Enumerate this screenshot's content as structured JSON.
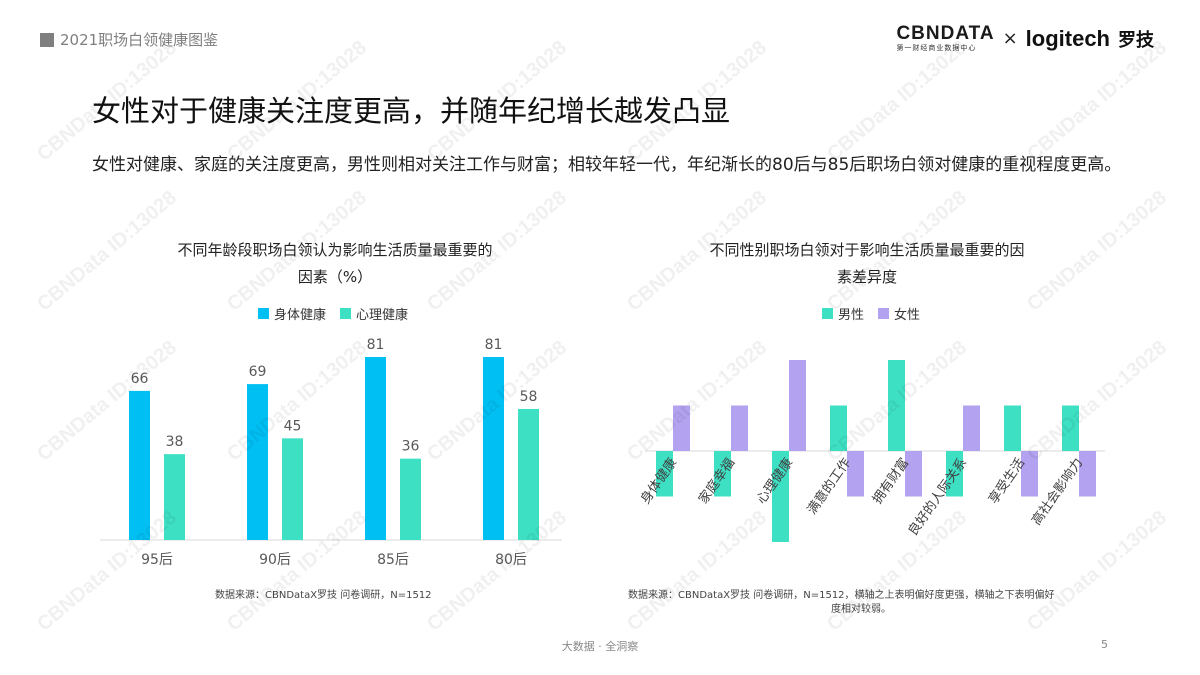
{
  "header": {
    "tag": "2021职场白领健康图鉴"
  },
  "logos": {
    "cbn_name": "CBNDATA",
    "cbn_sub": "第一财经商业数据中心",
    "times": "×",
    "logitech": "logitech",
    "logitech_cn": "罗技"
  },
  "title": "女性对于健康关注度更高，并随年纪增长越发凸显",
  "subtitle": "女性对健康、家庭的关注度更高，男性则相对关注工作与财富；相较年轻一代，年纪渐长的80后与85后职场白领对健康的重视程度更高。",
  "colors": {
    "cyan": "#00bff3",
    "mint": "#3ee0c4",
    "purple": "#b2a2f0"
  },
  "chart_data": [
    {
      "type": "bar",
      "title_line1": "不同年龄段职场白领认为影响生活质量最重要的",
      "title_line2": "因素（%）",
      "categories": [
        "95后",
        "90后",
        "85后",
        "80后"
      ],
      "series": [
        {
          "name": "身体健康",
          "values": [
            66,
            69,
            81,
            81
          ],
          "color": "#00bff3"
        },
        {
          "name": "心理健康",
          "values": [
            38,
            45,
            36,
            58
          ],
          "color": "#3ee0c4"
        }
      ],
      "ylim": [
        0,
        81
      ],
      "source": "数据来源：CBNDataX罗技 问卷调研，N=1512"
    },
    {
      "type": "bar",
      "title_line1": "不同性别职场白领对于影响生活质量最重要的因",
      "title_line2": "素差异度",
      "categories": [
        "身体健康",
        "家庭幸福",
        "心理健康",
        "满意的工作",
        "拥有财富",
        "良好的人际关系",
        "享受生活",
        "高社会影响力"
      ],
      "series": [
        {
          "name": "男性",
          "values": [
            -1,
            -1,
            -2,
            1,
            2,
            -1,
            1,
            1
          ],
          "color": "#3ee0c4"
        },
        {
          "name": "女性",
          "values": [
            1,
            1,
            2,
            -1,
            -1,
            1,
            -1,
            -1
          ],
          "color": "#b2a2f0"
        }
      ],
      "ylim": [
        -2,
        2
      ],
      "source_line1": "数据来源：CBNDataX罗技 问卷调研，N=1512，横轴之上表明偏好度更强，横轴之下表明偏好",
      "source_line2": "度相对较弱。"
    }
  ],
  "footer": {
    "text": "大数据 · 全洞察",
    "page": "5"
  },
  "watermark": "CBNData ID:13028"
}
